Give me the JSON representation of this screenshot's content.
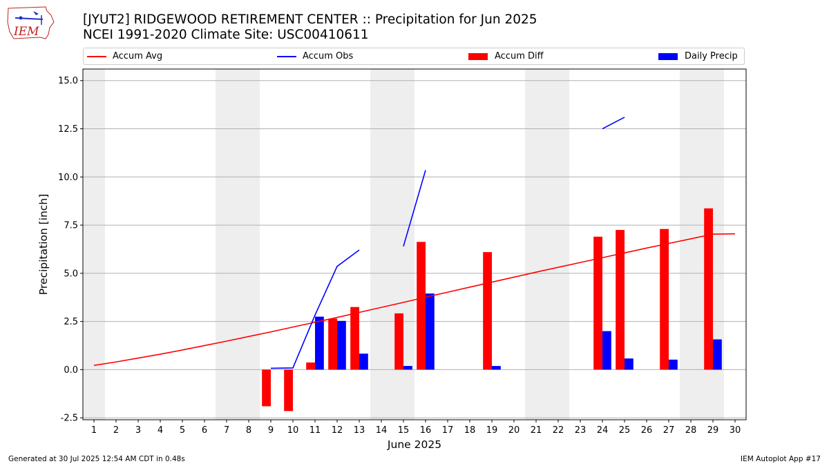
{
  "header": {
    "title_line1": "[JYUT2] RIDGEWOOD RETIREMENT CENTER :: Precipitation for Jun 2025",
    "title_line2": "NCEI 1991-2020 Climate Site: USC00410611",
    "logo_text": "IEM"
  },
  "footer": {
    "left": "Generated at 30 Jul 2025 12:54 AM CDT in 0.48s",
    "right": "IEM Autoplot App #17"
  },
  "colors": {
    "accum_avg": "#ff0000",
    "accum_obs": "#0000ff",
    "accum_diff": "#ff0000",
    "daily_precip": "#0000ff",
    "weekend_shade": "#eeeeee",
    "grid": "#b0b0b0"
  },
  "chart_data": {
    "type": "bar",
    "xlabel": "June 2025",
    "ylabel": "Precipitation [inch]",
    "xlim": [
      0.5,
      30.5
    ],
    "ylim": [
      -2.6,
      15.6
    ],
    "yticks": [
      "-2.5",
      "0.0",
      "2.5",
      "5.0",
      "7.5",
      "10.0",
      "12.5",
      "15.0"
    ],
    "ytick_values": [
      -2.5,
      0,
      2.5,
      5,
      7.5,
      10,
      12.5,
      15
    ],
    "days": [
      1,
      2,
      3,
      4,
      5,
      6,
      7,
      8,
      9,
      10,
      11,
      12,
      13,
      14,
      15,
      16,
      17,
      18,
      19,
      20,
      21,
      22,
      23,
      24,
      25,
      26,
      27,
      28,
      29,
      30
    ],
    "grid": "horizontal",
    "legend_position": "top",
    "weekend_days": [
      1,
      7,
      8,
      14,
      15,
      21,
      22,
      28,
      29
    ],
    "legend": {
      "accum_avg": "Accum Avg",
      "accum_obs": "Accum Obs",
      "accum_diff": "Accum Diff",
      "daily_precip": "Daily Precip"
    },
    "series": [
      {
        "name": "Accum Avg",
        "kind": "line",
        "points": [
          [
            1,
            0.22
          ],
          [
            2,
            0.4
          ],
          [
            3,
            0.6
          ],
          [
            4,
            0.8
          ],
          [
            5,
            1.02
          ],
          [
            6,
            1.25
          ],
          [
            7,
            1.48
          ],
          [
            8,
            1.72
          ],
          [
            9,
            1.96
          ],
          [
            10,
            2.21
          ],
          [
            11,
            2.46
          ],
          [
            12,
            2.71
          ],
          [
            13,
            2.97
          ],
          [
            14,
            3.23
          ],
          [
            15,
            3.49
          ],
          [
            16,
            3.76
          ],
          [
            17,
            4.02
          ],
          [
            18,
            4.28
          ],
          [
            19,
            4.54
          ],
          [
            20,
            4.8
          ],
          [
            21,
            5.06
          ],
          [
            22,
            5.31
          ],
          [
            23,
            5.56
          ],
          [
            24,
            5.81
          ],
          [
            25,
            6.06
          ],
          [
            26,
            6.31
          ],
          [
            27,
            6.55
          ],
          [
            28,
            6.79
          ],
          [
            29,
            7.03
          ],
          [
            30,
            7.05
          ]
        ]
      },
      {
        "name": "Accum Obs",
        "kind": "line-segments",
        "segments": [
          [
            [
              9,
              0.07
            ],
            [
              10,
              0.09
            ],
            [
              11,
              2.83
            ],
            [
              12,
              5.36
            ],
            [
              13,
              6.21
            ]
          ],
          [
            [
              15,
              6.4
            ],
            [
              16,
              10.35
            ]
          ],
          [
            [
              24,
              12.5
            ],
            [
              25,
              13.1
            ]
          ]
        ]
      },
      {
        "name": "Accum Diff",
        "kind": "bar",
        "points": [
          [
            9,
            -1.9
          ],
          [
            10,
            -2.15
          ],
          [
            11,
            0.37
          ],
          [
            12,
            2.65
          ],
          [
            13,
            3.25
          ],
          [
            15,
            2.92
          ],
          [
            16,
            6.63
          ],
          [
            19,
            6.1
          ],
          [
            24,
            6.9
          ],
          [
            25,
            7.25
          ],
          [
            27,
            7.3
          ],
          [
            29,
            8.37
          ]
        ]
      },
      {
        "name": "Daily Precip",
        "kind": "bar",
        "points": [
          [
            11,
            2.75
          ],
          [
            12,
            2.53
          ],
          [
            13,
            0.83
          ],
          [
            15,
            0.19
          ],
          [
            16,
            3.95
          ],
          [
            19,
            0.19
          ],
          [
            24,
            2.0
          ],
          [
            25,
            0.58
          ],
          [
            27,
            0.52
          ],
          [
            29,
            1.57
          ]
        ]
      }
    ]
  }
}
